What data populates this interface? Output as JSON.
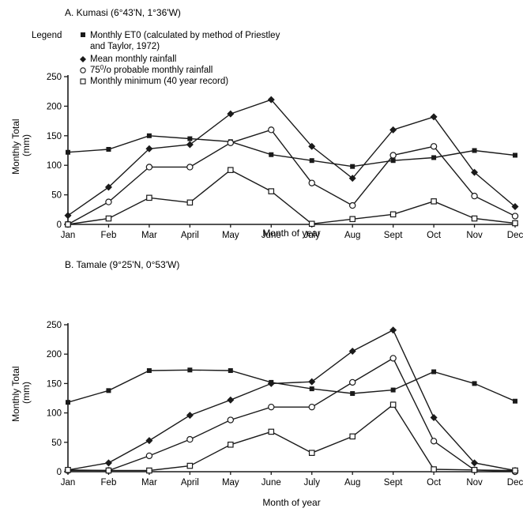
{
  "chart_data": [
    {
      "type": "line",
      "title": "A. Kumasi (6°43'N, 1°36'W)",
      "legend_heading": "Legend",
      "xlabel": "Month of year",
      "ylabel": "Monthly Total (mm)",
      "ylim": [
        0,
        250
      ],
      "yticks": [
        0,
        50,
        100,
        150,
        200,
        250
      ],
      "grid": false,
      "legend_position": "top-left",
      "categories": [
        "Jan",
        "Feb",
        "Mar",
        "April",
        "May",
        "June",
        "July",
        "Aug",
        "Sept",
        "Oct",
        "Nov",
        "Dec"
      ],
      "series": [
        {
          "name": "Monthly ET0 (calculated by method of Priestley and Taylor, 1972)",
          "marker": "filled-square",
          "values": [
            122,
            127,
            150,
            145,
            140,
            118,
            108,
            98,
            108,
            113,
            125,
            117
          ]
        },
        {
          "name": "Mean monthly rainfall",
          "marker": "filled-diamond",
          "values": [
            15,
            63,
            128,
            135,
            187,
            211,
            132,
            78,
            160,
            182,
            88,
            30
          ]
        },
        {
          "name": "75 o/o probable monthly rainfall",
          "marker": "open-circle",
          "values": [
            0,
            38,
            97,
            97,
            138,
            160,
            70,
            32,
            117,
            132,
            48,
            14
          ]
        },
        {
          "name": "Monthly minimum (40 year record)",
          "marker": "open-square",
          "values": [
            0,
            10,
            45,
            37,
            92,
            56,
            1,
            9,
            17,
            39,
            10,
            2
          ]
        }
      ]
    },
    {
      "type": "line",
      "title": "B. Tamale (9°25'N, 0°53'W)",
      "xlabel": "Month of year",
      "ylabel": "Monthly Total (mm)",
      "ylim": [
        0,
        250
      ],
      "yticks": [
        0,
        50,
        100,
        150,
        200,
        250
      ],
      "grid": false,
      "categories": [
        "Jan",
        "Feb",
        "Mar",
        "April",
        "May",
        "June",
        "July",
        "Aug",
        "Sept",
        "Oct",
        "Nov",
        "Dec"
      ],
      "series": [
        {
          "name": "Monthly ET0 (calculated by method of Priestley and Taylor, 1972)",
          "marker": "filled-square",
          "values": [
            118,
            138,
            172,
            173,
            172,
            152,
            141,
            133,
            139,
            170,
            150,
            120
          ]
        },
        {
          "name": "Mean monthly rainfall",
          "marker": "filled-diamond",
          "values": [
            3,
            15,
            53,
            96,
            122,
            150,
            153,
            205,
            241,
            92,
            15,
            2
          ]
        },
        {
          "name": "75 o/o probable monthly rainfall",
          "marker": "open-circle",
          "values": [
            2,
            2,
            27,
            55,
            88,
            110,
            110,
            152,
            193,
            52,
            3,
            0
          ]
        },
        {
          "name": "Monthly minimum (40 year record)",
          "marker": "open-square",
          "values": [
            3,
            2,
            2,
            10,
            46,
            68,
            32,
            60,
            114,
            4,
            3,
            2
          ]
        }
      ]
    }
  ]
}
